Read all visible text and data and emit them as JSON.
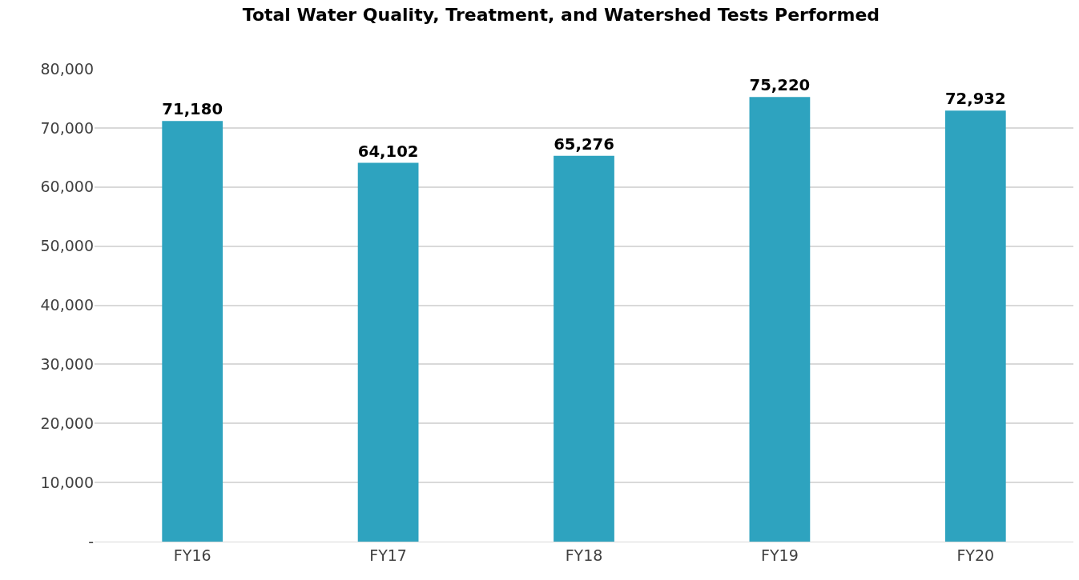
{
  "chart_data": {
    "type": "bar",
    "title": "Total Water Quality, Treatment, and Watershed Tests Performed",
    "categories": [
      "FY16",
      "FY17",
      "FY18",
      "FY19",
      "FY20"
    ],
    "values": [
      71180,
      64102,
      65276,
      75220,
      72932
    ],
    "color": "#2ea3bf",
    "ylim": [
      0,
      80000
    ],
    "yticks": [
      {
        "value": 0,
        "label": "-"
      },
      {
        "value": 10000,
        "label": "10,000"
      },
      {
        "value": 20000,
        "label": "20,000"
      },
      {
        "value": 30000,
        "label": "30,000"
      },
      {
        "value": 40000,
        "label": "40,000"
      },
      {
        "value": 50000,
        "label": "50,000"
      },
      {
        "value": 60000,
        "label": "60,000"
      },
      {
        "value": 70000,
        "label": "70,000"
      },
      {
        "value": 80000,
        "label": "80,000"
      }
    ],
    "grid": "y",
    "value_labels": [
      "71,180",
      "64,102",
      "65,276",
      "75,220",
      "72,932"
    ]
  }
}
